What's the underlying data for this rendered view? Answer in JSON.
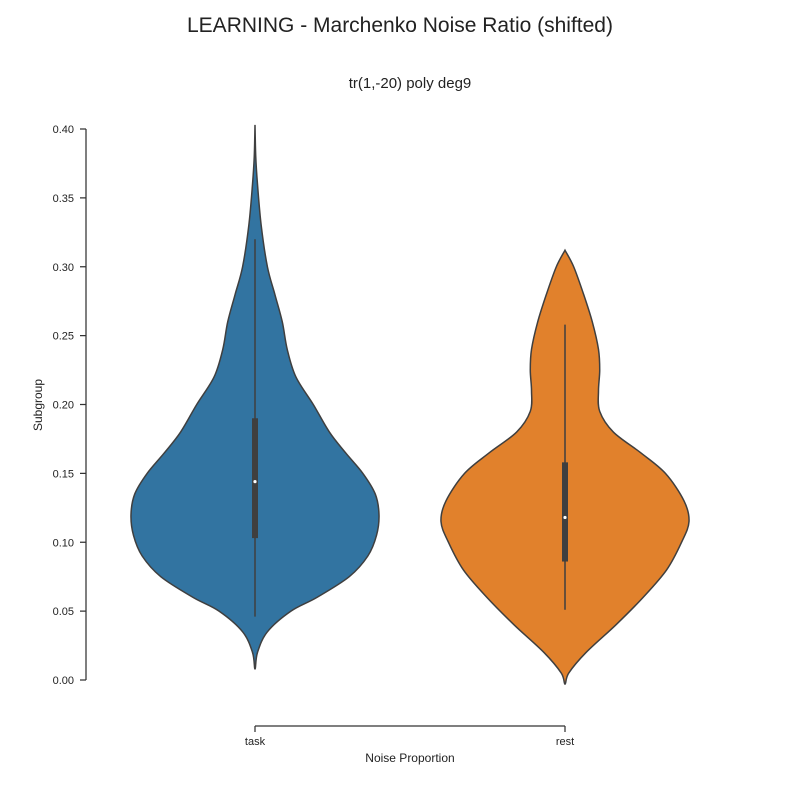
{
  "chart_data": {
    "type": "violin",
    "title": "LEARNING - Marchenko Noise Ratio (shifted)",
    "subtitle": "tr(1,-20) poly deg9",
    "xlabel": "Noise Proportion",
    "ylabel": "Subgroup",
    "categories": [
      "task",
      "rest"
    ],
    "ylim": [
      0.0,
      0.4
    ],
    "yticks": [
      0.0,
      0.05,
      0.1,
      0.15,
      0.2,
      0.25,
      0.3,
      0.35,
      0.4
    ],
    "ytick_labels": [
      "0.00",
      "0.05",
      "0.10",
      "0.15",
      "0.20",
      "0.25",
      "0.30",
      "0.35",
      "0.40"
    ],
    "grid": false,
    "violins": [
      {
        "category": "task",
        "color": "#3274a1",
        "min": 0.046,
        "q1": 0.103,
        "median": 0.144,
        "q3": 0.19,
        "max": 0.32,
        "kde_min": 0.008,
        "kde_max": 0.403,
        "density_profile": [
          [
            0.008,
            0.0
          ],
          [
            0.02,
            0.02
          ],
          [
            0.035,
            0.1
          ],
          [
            0.05,
            0.29
          ],
          [
            0.06,
            0.5
          ],
          [
            0.075,
            0.76
          ],
          [
            0.09,
            0.91
          ],
          [
            0.105,
            0.98
          ],
          [
            0.12,
            1.0
          ],
          [
            0.135,
            0.97
          ],
          [
            0.15,
            0.87
          ],
          [
            0.165,
            0.73
          ],
          [
            0.18,
            0.6
          ],
          [
            0.2,
            0.47
          ],
          [
            0.22,
            0.33
          ],
          [
            0.24,
            0.26
          ],
          [
            0.26,
            0.22
          ],
          [
            0.28,
            0.16
          ],
          [
            0.3,
            0.1
          ],
          [
            0.33,
            0.05
          ],
          [
            0.36,
            0.02
          ],
          [
            0.38,
            0.006
          ],
          [
            0.403,
            0.0
          ]
        ]
      },
      {
        "category": "rest",
        "color": "#e1812c",
        "min": 0.051,
        "q1": 0.086,
        "median": 0.118,
        "q3": 0.158,
        "max": 0.258,
        "kde_min": -0.003,
        "kde_max": 0.312,
        "density_profile": [
          [
            -0.003,
            0.0
          ],
          [
            0.005,
            0.03
          ],
          [
            0.02,
            0.17
          ],
          [
            0.04,
            0.41
          ],
          [
            0.06,
            0.63
          ],
          [
            0.08,
            0.82
          ],
          [
            0.1,
            0.94
          ],
          [
            0.115,
            1.0
          ],
          [
            0.13,
            0.96
          ],
          [
            0.15,
            0.81
          ],
          [
            0.165,
            0.61
          ],
          [
            0.18,
            0.39
          ],
          [
            0.195,
            0.28
          ],
          [
            0.21,
            0.27
          ],
          [
            0.225,
            0.28
          ],
          [
            0.24,
            0.27
          ],
          [
            0.26,
            0.22
          ],
          [
            0.28,
            0.15
          ],
          [
            0.3,
            0.07
          ],
          [
            0.312,
            0.0
          ]
        ]
      }
    ]
  }
}
